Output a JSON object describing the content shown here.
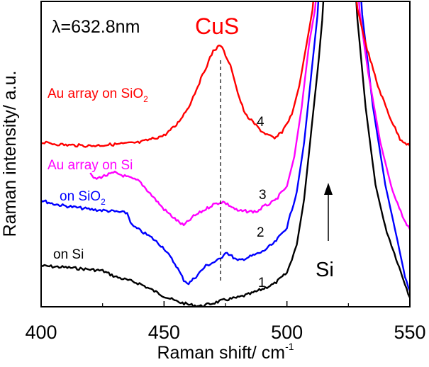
{
  "chart_data": {
    "type": "line",
    "xlabel": "Raman shift/ cm",
    "xlabel_sup": "-1",
    "ylabel": "Raman intensity/ a.u.",
    "xlim": [
      400,
      550
    ],
    "ylim": [
      0,
      100
    ],
    "x_ticks": [
      "400",
      "450",
      "500",
      "550"
    ],
    "x_minor_ticks": [
      425,
      475,
      525
    ],
    "y_ticks": [],
    "grid": false,
    "annotations": {
      "wavelength": "λ=632.8nm",
      "material": "CuS",
      "material_color": "#ff0000",
      "si_label": "Si",
      "si_arrow_x": 518,
      "dashed_line_x": 473
    },
    "series": [
      {
        "name": "on Si",
        "number": "1",
        "color": "#000000",
        "x": [
          400,
          410,
          420,
          425,
          430,
          440,
          450,
          455,
          460,
          465,
          470,
          475,
          480,
          485,
          490,
          495,
          500,
          504,
          507,
          510,
          513,
          515,
          528,
          532,
          536,
          540,
          545,
          548,
          550
        ],
        "y": [
          13.4,
          12.9,
          12.2,
          11.8,
          9.9,
          7.6,
          3.5,
          1.8,
          0.7,
          0.2,
          1.2,
          2.3,
          3.0,
          4.2,
          5.8,
          7.6,
          11.1,
          20.3,
          35.3,
          58.4,
          81.5,
          100,
          100,
          65.4,
          40.0,
          26.1,
          14.5,
          7.6,
          3.0
        ]
      },
      {
        "name": "on SiO",
        "name_sub": "2",
        "number": "2",
        "color": "#0000ff",
        "x": [
          400,
          405,
          410,
          420,
          430,
          435,
          437,
          445,
          450,
          455,
          458,
          460,
          463,
          467,
          470,
          473,
          475,
          477,
          480,
          485,
          490,
          495,
          500,
          504,
          507,
          510,
          513,
          530,
          535,
          540,
          545,
          548,
          550
        ],
        "y": [
          34.9,
          33.7,
          33.0,
          31.9,
          31.2,
          30.7,
          26.6,
          22.6,
          19.2,
          13.4,
          8.8,
          7.6,
          9.9,
          13.4,
          14.5,
          15.7,
          18.0,
          16.9,
          15.0,
          16.4,
          18.0,
          21.0,
          26.1,
          37.6,
          53.8,
          76.9,
          100,
          100,
          65.4,
          40.0,
          21.5,
          10.0,
          5.3
        ]
      },
      {
        "name": "Au array on Si",
        "number": "3",
        "color": "#ff00ff",
        "x": [
          420,
          422,
          425,
          430,
          440,
          445,
          450,
          455,
          458,
          462,
          467,
          470,
          474,
          477,
          480,
          485,
          488,
          490,
          495,
          500,
          503,
          506,
          509,
          512,
          529,
          533,
          538,
          543,
          547,
          550
        ],
        "y": [
          43.4,
          41.8,
          42.7,
          43.9,
          41.1,
          36.5,
          31.9,
          28.4,
          26.6,
          29.6,
          32.0,
          33.5,
          34.4,
          33.0,
          31.4,
          31.2,
          31.2,
          32.6,
          34.6,
          39.5,
          49.2,
          65.4,
          86.1,
          100,
          100,
          76.9,
          53.8,
          37.6,
          29.6,
          25.4
        ]
      },
      {
        "name": "Au array on SiO",
        "name_sub": "2",
        "number": "4",
        "color": "#ff0000",
        "x": [
          400,
          410,
          420,
          430,
          440,
          450,
          455,
          460,
          465,
          470,
          473,
          477,
          480,
          483,
          490,
          495,
          498,
          502,
          505,
          508,
          511,
          528,
          532,
          537,
          542,
          546,
          550
        ],
        "y": [
          53.8,
          53.0,
          52.7,
          53.2,
          53.8,
          56.1,
          59.5,
          65.4,
          74.6,
          83.8,
          85.7,
          79.2,
          70.0,
          63.0,
          57.3,
          55.0,
          57.3,
          63.0,
          72.3,
          86.1,
          100,
          100,
          86.1,
          72.3,
          61.9,
          55.0,
          52.7
        ]
      }
    ]
  }
}
